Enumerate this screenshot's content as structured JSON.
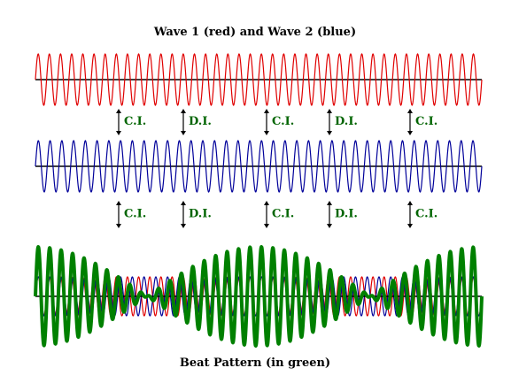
{
  "title": "Wave 1 (red) and Wave 2 (blue)",
  "caption": "Beat Pattern (in green)",
  "colors": {
    "wave1": "#e00000",
    "wave2": "#00009a",
    "beat": "#008000",
    "axis": "#000000",
    "label": "#006400",
    "arrow": "#000000"
  },
  "waves": {
    "wave1": {
      "cycles": 40
    },
    "wave2": {
      "cycles": 38
    }
  },
  "markers_row1": [
    {
      "label": "C.I."
    },
    {
      "label": "D.I."
    },
    {
      "label": "C.I."
    },
    {
      "label": "D.I."
    },
    {
      "label": "C.I."
    }
  ],
  "markers_row2": [
    {
      "label": "C.I."
    },
    {
      "label": "D.I."
    },
    {
      "label": "C.I."
    },
    {
      "label": "D.I."
    },
    {
      "label": "C.I."
    }
  ]
}
